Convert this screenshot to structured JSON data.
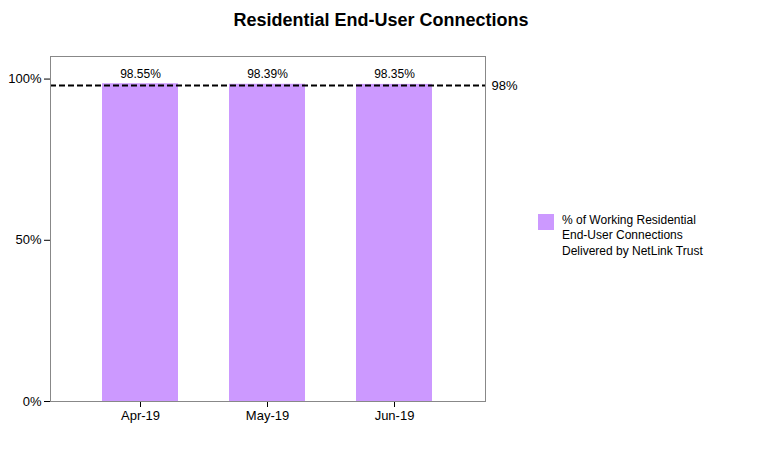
{
  "chart_data": {
    "type": "bar",
    "title": "Residential End-User Connections",
    "categories": [
      "Apr-19",
      "May-19",
      "Jun-19"
    ],
    "series": [
      {
        "name": "% of Working Residential\nEnd-User Connections\nDelivered by NetLink Trust",
        "color": "#cc99ff",
        "values": [
          98.55,
          98.39,
          98.35
        ],
        "value_labels": [
          "98.55%",
          "98.39%",
          "98.35%"
        ]
      }
    ],
    "data_labels": true,
    "ylim": [
      0,
      107
    ],
    "yticks": [
      {
        "value": 0,
        "label": "0%"
      },
      {
        "value": 50,
        "label": "50%"
      },
      {
        "value": 100,
        "label": "100%"
      }
    ],
    "grid": false,
    "legend": "right",
    "reference_line": {
      "value": 98,
      "label": "98%",
      "line_style": "dashed"
    }
  }
}
